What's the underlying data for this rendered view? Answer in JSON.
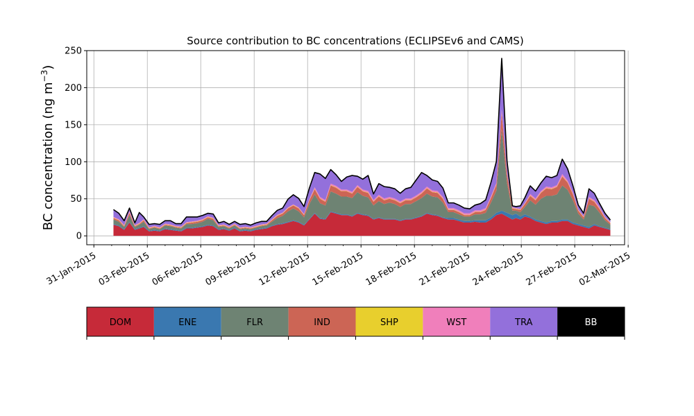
{
  "chart_data": {
    "type": "area",
    "stacked": true,
    "title": "Source contribution to BC concentrations (ECLIPSEv6 and CAMS)",
    "xlabel": "",
    "ylabel_main": "BC concentration (ng m",
    "ylabel_sup": "−3",
    "ylabel_close": ")",
    "ylim": [
      -12,
      250
    ],
    "yticks": [
      0,
      50,
      100,
      150,
      200,
      250
    ],
    "xlim": [
      -0.4,
      29.8
    ],
    "xticks": [
      {
        "day": 0,
        "label": "31-Jan-2015"
      },
      {
        "day": 3,
        "label": "03-Feb-2015"
      },
      {
        "day": 6,
        "label": "06-Feb-2015"
      },
      {
        "day": 9,
        "label": "09-Feb-2015"
      },
      {
        "day": 12,
        "label": "12-Feb-2015"
      },
      {
        "day": 15,
        "label": "15-Feb-2015"
      },
      {
        "day": 18,
        "label": "18-Feb-2015"
      },
      {
        "day": 21,
        "label": "21-Feb-2015"
      },
      {
        "day": 24,
        "label": "24-Feb-2015"
      },
      {
        "day": 27,
        "label": "27-Feb-2015"
      },
      {
        "day": 30,
        "label": "02-Mar-2015"
      }
    ],
    "grid": true,
    "x_day": [
      1.1,
      1.4,
      1.7,
      2.0,
      2.3,
      2.55,
      2.8,
      3.1,
      3.4,
      3.7,
      4.0,
      4.3,
      4.6,
      4.9,
      5.2,
      5.5,
      5.8,
      6.1,
      6.4,
      6.7,
      7.0,
      7.3,
      7.6,
      7.9,
      8.2,
      8.5,
      8.8,
      9.1,
      9.4,
      9.7,
      10.0,
      10.3,
      10.6,
      10.9,
      11.2,
      11.5,
      11.8,
      12.1,
      12.4,
      12.7,
      13.0,
      13.3,
      13.6,
      13.9,
      14.2,
      14.5,
      14.8,
      15.1,
      15.4,
      15.7,
      16.0,
      16.3,
      16.6,
      16.9,
      17.2,
      17.5,
      17.8,
      18.1,
      18.4,
      18.7,
      19.0,
      19.3,
      19.6,
      19.9,
      20.2,
      20.5,
      20.8,
      21.1,
      21.4,
      21.7,
      22.0,
      22.3,
      22.6,
      22.9,
      23.2,
      23.5,
      23.7,
      23.95,
      24.2,
      24.5,
      24.8,
      25.1,
      25.4,
      25.7,
      26.0,
      26.3,
      26.6,
      26.9,
      27.2,
      27.5,
      27.8,
      28.1,
      28.4,
      28.7,
      29.0
    ],
    "series": [
      {
        "name": "DOM",
        "color": "#c62a39",
        "values": [
          15,
          13,
          8,
          18,
          8,
          10,
          12,
          6,
          7,
          6,
          9,
          8,
          7,
          6,
          10,
          10,
          11,
          12,
          14,
          13,
          8,
          9,
          7,
          10,
          6,
          7,
          6,
          8,
          9,
          10,
          13,
          15,
          16,
          18,
          20,
          18,
          14,
          22,
          30,
          23,
          22,
          32,
          30,
          28,
          28,
          26,
          30,
          28,
          27,
          22,
          24,
          22,
          22,
          22,
          20,
          22,
          22,
          24,
          26,
          30,
          28,
          27,
          24,
          22,
          22,
          20,
          18,
          18,
          19,
          18,
          18,
          22,
          28,
          30,
          26,
          22,
          24,
          22,
          26,
          24,
          20,
          18,
          16,
          18,
          18,
          20,
          20,
          16,
          14,
          12,
          10,
          14,
          12,
          10,
          8
        ]
      },
      {
        "name": "ENE",
        "color": "#3a78b0",
        "values": [
          1,
          1,
          1,
          1,
          1,
          1,
          1,
          1,
          1,
          1,
          1,
          1,
          1,
          1,
          1,
          1,
          1,
          1,
          1,
          1,
          1,
          1,
          1,
          1,
          1,
          1,
          1,
          1,
          1,
          1,
          1,
          1,
          1,
          1,
          1,
          1,
          1,
          1,
          1,
          1,
          1,
          1,
          1,
          1,
          1,
          1,
          1,
          1,
          1,
          1,
          1,
          1,
          1,
          1,
          1,
          1,
          1,
          1,
          1,
          1,
          1,
          1,
          1,
          2,
          2,
          2,
          2,
          2,
          2,
          3,
          3,
          3,
          3,
          4,
          5,
          6,
          6,
          4,
          3,
          2,
          2,
          2,
          2,
          2,
          2,
          2,
          2,
          2,
          2,
          2,
          2,
          2,
          1,
          1,
          1
        ]
      },
      {
        "name": "FLR",
        "color": "#6e8373",
        "values": [
          6,
          5,
          3,
          9,
          3,
          4,
          6,
          2,
          3,
          2,
          4,
          4,
          3,
          3,
          5,
          5,
          5,
          6,
          8,
          7,
          3,
          3,
          2,
          3,
          2,
          2,
          2,
          2,
          3,
          3,
          5,
          8,
          10,
          14,
          16,
          14,
          10,
          20,
          25,
          20,
          18,
          27,
          26,
          24,
          24,
          24,
          28,
          25,
          24,
          18,
          22,
          20,
          22,
          20,
          18,
          20,
          20,
          22,
          24,
          26,
          24,
          24,
          20,
          8,
          8,
          7,
          6,
          6,
          8,
          8,
          10,
          20,
          30,
          110,
          40,
          6,
          4,
          6,
          10,
          22,
          20,
          30,
          36,
          34,
          36,
          46,
          40,
          30,
          14,
          8,
          30,
          24,
          18,
          10,
          6
        ]
      },
      {
        "name": "IND",
        "color": "#cc6555",
        "values": [
          2,
          2,
          1,
          3,
          1,
          1,
          2,
          1,
          1,
          1,
          1,
          1,
          1,
          1,
          1,
          2,
          2,
          2,
          2,
          2,
          1,
          1,
          1,
          1,
          1,
          1,
          1,
          1,
          1,
          1,
          2,
          3,
          3,
          4,
          4,
          4,
          3,
          5,
          7,
          6,
          5,
          8,
          8,
          7,
          7,
          6,
          7,
          6,
          6,
          5,
          6,
          5,
          5,
          5,
          5,
          5,
          5,
          5,
          6,
          7,
          6,
          6,
          5,
          3,
          3,
          3,
          2,
          2,
          3,
          3,
          4,
          6,
          8,
          22,
          12,
          3,
          2,
          3,
          4,
          6,
          6,
          8,
          10,
          9,
          10,
          12,
          10,
          8,
          4,
          3,
          8,
          6,
          5,
          3,
          2
        ]
      },
      {
        "name": "SHP",
        "color": "#e8cf2d",
        "values": [
          0.5,
          0.5,
          0.5,
          0.5,
          0.5,
          0.5,
          0.5,
          0.5,
          0.5,
          0.5,
          0.5,
          0.5,
          0.5,
          0.5,
          0.5,
          0.5,
          0.5,
          0.5,
          0.5,
          0.5,
          0.5,
          0.5,
          0.5,
          0.5,
          0.5,
          0.5,
          0.5,
          0.5,
          0.5,
          0.5,
          0.5,
          0.5,
          0.5,
          0.5,
          0.5,
          0.5,
          0.5,
          0.5,
          0.5,
          0.5,
          0.5,
          0.5,
          0.5,
          0.5,
          0.5,
          0.5,
          0.5,
          0.5,
          0.5,
          0.5,
          0.5,
          0.5,
          0.5,
          0.5,
          0.5,
          0.5,
          0.5,
          0.5,
          0.5,
          0.5,
          0.5,
          0.5,
          0.5,
          0.5,
          0.5,
          0.5,
          0.5,
          0.5,
          0.5,
          0.5,
          0.5,
          0.5,
          0.5,
          0.5,
          0.5,
          0.5,
          0.5,
          0.5,
          0.5,
          0.5,
          0.5,
          0.5,
          0.5,
          0.5,
          0.5,
          0.5,
          0.5,
          0.5,
          0.5,
          0.5,
          0.5,
          0.5,
          0.5,
          0.5,
          0.5
        ]
      },
      {
        "name": "WST",
        "color": "#f07fbb",
        "values": [
          1,
          1,
          1,
          2,
          1,
          1,
          1,
          1,
          1,
          1,
          1,
          1,
          1,
          1,
          1,
          1,
          1,
          1,
          1,
          1,
          1,
          1,
          1,
          1,
          1,
          1,
          1,
          1,
          1,
          1,
          1,
          1,
          1,
          1,
          1,
          1,
          1,
          1,
          2,
          2,
          2,
          2,
          2,
          2,
          2,
          2,
          2,
          2,
          2,
          2,
          2,
          2,
          2,
          2,
          2,
          2,
          2,
          2,
          2,
          2,
          2,
          2,
          2,
          2,
          2,
          2,
          2,
          2,
          2,
          2,
          2,
          2,
          2,
          4,
          2,
          1,
          1,
          1,
          1,
          2,
          2,
          2,
          2,
          2,
          2,
          3,
          2,
          2,
          1,
          1,
          2,
          2,
          2,
          1,
          1
        ]
      },
      {
        "name": "TRA",
        "color": "#9370db",
        "values": [
          9.5,
          7.5,
          5.5,
          3.5,
          2.5,
          13.5,
          2.5,
          3.5,
          2.5,
          3.5,
          3.5,
          4.5,
          2.5,
          3.5,
          6.5,
          5.5,
          4.5,
          4.5,
          3.5,
          4.5,
          2.5,
          3.5,
          2.5,
          2.5,
          3.5,
          3.5,
          2.5,
          3.5,
          3.5,
          2.5,
          4.5,
          5.5,
          5.5,
          10.5,
          12.5,
          11.5,
          9.5,
          14.5,
          19.5,
          30.5,
          28.5,
          18.5,
          14.5,
          10.5,
          16.5,
          21.5,
          11.5,
          13.5,
          20.5,
          7.5,
          14.5,
          15.5,
          12.5,
          12.5,
          10.5,
          12.5,
          14.5,
          20.5,
          25.5,
          14.5,
          13.5,
          12.5,
          11.5,
          6.5,
          6.5,
          6.5,
          6.5,
          5.5,
          6.5,
          8.5,
          10.5,
          18.5,
          28.5,
          68.5,
          14.5,
          1.5,
          1.5,
          3.5,
          6.5,
          10.5,
          9.5,
          10.5,
          13.5,
          12.5,
          12.5,
          19.5,
          15.5,
          8.5,
          5.5,
          3.5,
          10.5,
          8.5,
          4.5,
          4.5,
          2.5
        ]
      },
      {
        "name": "BB",
        "color": "#000000",
        "values": [
          0.5,
          0.5,
          0.5,
          0.5,
          0.5,
          0.5,
          0.5,
          0.5,
          0.5,
          0.5,
          0.5,
          0.5,
          0.5,
          0.5,
          0.5,
          0.5,
          0.5,
          0.5,
          0.5,
          0.5,
          0.5,
          0.5,
          0.5,
          0.5,
          0.5,
          0.5,
          0.5,
          0.5,
          0.5,
          0.5,
          0.5,
          0.5,
          0.5,
          0.5,
          0.5,
          0.5,
          0.5,
          0.5,
          0.5,
          0.5,
          0.5,
          0.5,
          0.5,
          0.5,
          0.5,
          0.5,
          0.5,
          0.5,
          0.5,
          0.5,
          0.5,
          0.5,
          0.5,
          0.5,
          0.5,
          0.5,
          0.5,
          0.5,
          0.5,
          0.5,
          0.5,
          0.5,
          0.5,
          0.5,
          0.5,
          0.5,
          0.5,
          0.5,
          0.5,
          0.5,
          0.5,
          0.5,
          0.5,
          0.5,
          0.5,
          0.5,
          0.5,
          0.5,
          0.5,
          0.5,
          0.5,
          0.5,
          0.5,
          0.5,
          0.5,
          0.5,
          0.5,
          0.5,
          0.5,
          0.5,
          0.5,
          0.5,
          0.5,
          0.5,
          0.5
        ]
      }
    ],
    "legend": {
      "placement": "below",
      "style": "colorbar",
      "entries": [
        {
          "name": "DOM",
          "color": "#c62a39",
          "text_color": "#000000"
        },
        {
          "name": "ENE",
          "color": "#3a78b0",
          "text_color": "#000000"
        },
        {
          "name": "FLR",
          "color": "#6e8373",
          "text_color": "#000000"
        },
        {
          "name": "IND",
          "color": "#cc6555",
          "text_color": "#000000"
        },
        {
          "name": "SHP",
          "color": "#e8cf2d",
          "text_color": "#000000"
        },
        {
          "name": "WST",
          "color": "#f07fbb",
          "text_color": "#000000"
        },
        {
          "name": "TRA",
          "color": "#9370db",
          "text_color": "#000000"
        },
        {
          "name": "BB",
          "color": "#000000",
          "text_color": "#ffffff"
        }
      ]
    },
    "total_line_color": "#000000"
  }
}
